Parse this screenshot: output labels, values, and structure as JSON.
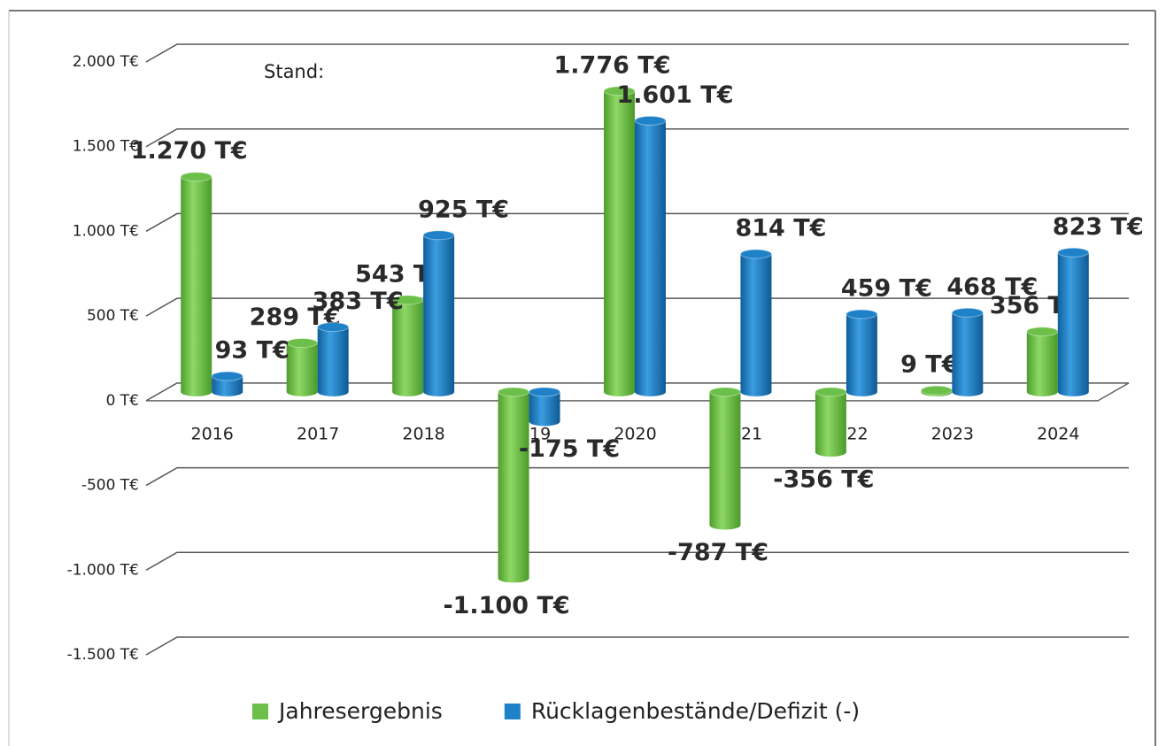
{
  "chart_data": {
    "type": "bar",
    "annotation": "Stand:",
    "categories": [
      "2016",
      "2017",
      "2018",
      "2019",
      "2020",
      "2021",
      "2022",
      "2023",
      "2024"
    ],
    "series": [
      {
        "name": "Jahresergebnis",
        "color": "#6cc04a",
        "values": [
          1270,
          289,
          543,
          -1100,
          1776,
          -787,
          -356,
          9,
          356
        ],
        "value_labels": [
          "1.270 T€",
          "289 T€",
          "543 T€",
          "-1.100 T€",
          "1.776 T€",
          "-787 T€",
          "-356 T€",
          "9 T€",
          "356 T€"
        ]
      },
      {
        "name": "Rücklagenbestände/Defizit (-)",
        "color": "#1f82c8",
        "values": [
          93,
          383,
          925,
          -175,
          1601,
          814,
          459,
          468,
          823
        ],
        "value_labels": [
          "93 T€",
          "383 T€",
          "925 T€",
          "-175 T€",
          "1.601 T€",
          "814 T€",
          "459 T€",
          "468 T€",
          "823 T€"
        ]
      }
    ],
    "ylim": [
      -1500,
      2000
    ],
    "yticks": [
      {
        "value": -1500,
        "label": "-1.500 T€"
      },
      {
        "value": -1000,
        "label": "-1.000 T€"
      },
      {
        "value": -500,
        "label": "-500 T€"
      },
      {
        "value": 0,
        "label": "0 T€"
      },
      {
        "value": 500,
        "label": "500 T€"
      },
      {
        "value": 1000,
        "label": "1.000 T€"
      },
      {
        "value": 1500,
        "label": "1.500 T€"
      },
      {
        "value": 2000,
        "label": "2.000 T€"
      }
    ],
    "grid": true,
    "legend": "bottom"
  }
}
